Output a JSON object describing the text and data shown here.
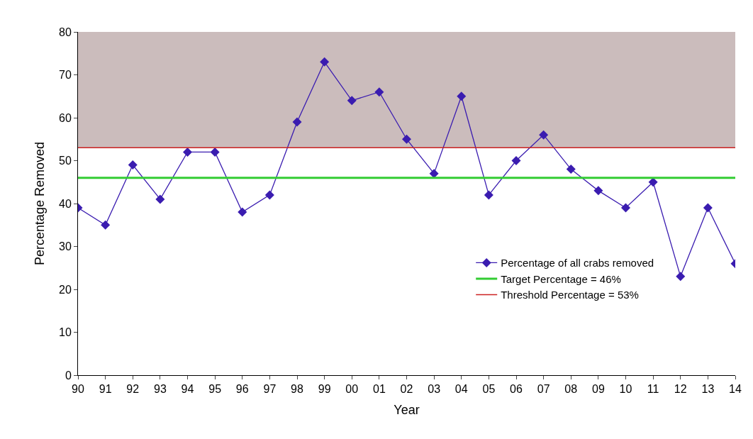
{
  "chart_data": {
    "type": "line",
    "xlabel": "Year",
    "ylabel": "Percentage Removed",
    "categories": [
      "90",
      "91",
      "92",
      "93",
      "94",
      "95",
      "96",
      "97",
      "98",
      "99",
      "00",
      "01",
      "02",
      "03",
      "04",
      "05",
      "06",
      "07",
      "08",
      "09",
      "10",
      "11",
      "12",
      "13",
      "14"
    ],
    "series": [
      {
        "name": "Percentage of all crabs removed",
        "color": "#3a1cb0",
        "values": [
          39,
          35,
          49,
          41,
          52,
          52,
          38,
          42,
          59,
          73,
          64,
          66,
          55,
          47,
          65,
          42,
          50,
          56,
          48,
          43,
          39,
          45,
          23,
          39,
          26
        ]
      }
    ],
    "ref_lines": [
      {
        "axis": "y",
        "value": 46,
        "label": "Target Percentage = 46%",
        "color": "#33cc33"
      },
      {
        "axis": "y",
        "value": 53,
        "label": "Threshold Percentage = 53%",
        "color": "#cc2222"
      }
    ],
    "bands": [
      {
        "axis": "y",
        "from": 53,
        "to": 80,
        "color": "#cbbcbc"
      }
    ],
    "ylim": [
      0,
      80
    ],
    "yticks": [
      0,
      10,
      20,
      30,
      40,
      50,
      60,
      70,
      80
    ],
    "grid": false,
    "legend": "bottom right",
    "marker": "diamond",
    "line_style": "solid"
  }
}
